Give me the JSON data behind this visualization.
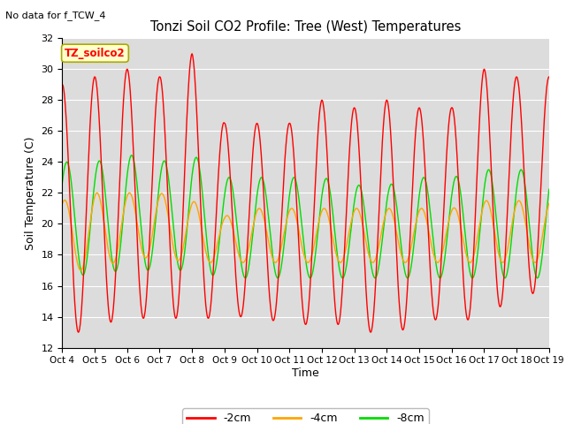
{
  "title": "Tonzi Soil CO2 Profile: Tree (West) Temperatures",
  "no_data_text": "No data for f_TCW_4",
  "ylabel": "Soil Temperature (C)",
  "xlabel": "Time",
  "annotation_label": "TZ_soilco2",
  "ylim": [
    12,
    32
  ],
  "background_color": "#dcdcdc",
  "fig_background": "#ffffff",
  "series": {
    "-2cm": {
      "color": "#ff0000",
      "linewidth": 1.0
    },
    "-4cm": {
      "color": "#ffa500",
      "linewidth": 1.0
    },
    "-8cm": {
      "color": "#00dd00",
      "linewidth": 1.0
    }
  },
  "x_tick_labels": [
    "Oct 4",
    "Oct 5",
    "Oct 6",
    "Oct 7",
    "Oct 8",
    "Oct 9",
    "Oct 10",
    "Oct 11",
    "Oct 12",
    "Oct 13",
    "Oct 14",
    "Oct 15",
    "Oct 16",
    "Oct 17",
    "Oct 18",
    "Oct 19"
  ],
  "y_ticks": [
    12,
    14,
    16,
    18,
    20,
    22,
    24,
    26,
    28,
    30,
    32
  ],
  "num_days": 15,
  "points_per_day": 96,
  "red_peaks": [
    29.0,
    29.5,
    30.0,
    29.5,
    31.0,
    26.5,
    26.5,
    26.5,
    28.0,
    27.5,
    28.0,
    27.5,
    27.5,
    30.0,
    29.5
  ],
  "red_troughs": [
    12.5,
    13.5,
    13.8,
    14.0,
    13.8,
    14.0,
    14.0,
    13.5,
    13.5,
    13.5,
    12.5,
    13.8,
    13.8,
    13.8,
    15.5
  ],
  "orange_peaks": [
    21.5,
    22.0,
    22.0,
    22.0,
    21.5,
    20.5,
    21.0,
    21.0,
    21.0,
    21.0,
    21.0,
    21.0,
    21.0,
    21.5,
    21.5
  ],
  "orange_troughs": [
    17.0,
    17.0,
    17.8,
    17.8,
    17.5,
    17.5,
    17.5,
    17.5,
    17.5,
    17.5,
    17.5,
    17.5,
    17.5,
    17.5,
    17.5
  ],
  "green_peaks": [
    24.0,
    24.0,
    24.5,
    24.0,
    24.5,
    23.0,
    23.0,
    23.0,
    23.0,
    22.5,
    22.5,
    23.0,
    23.0,
    23.5,
    23.5
  ],
  "green_troughs": [
    16.5,
    16.8,
    17.0,
    17.0,
    17.0,
    16.5,
    16.5,
    16.5,
    16.5,
    16.5,
    16.5,
    16.5,
    16.5,
    16.5,
    16.5
  ]
}
